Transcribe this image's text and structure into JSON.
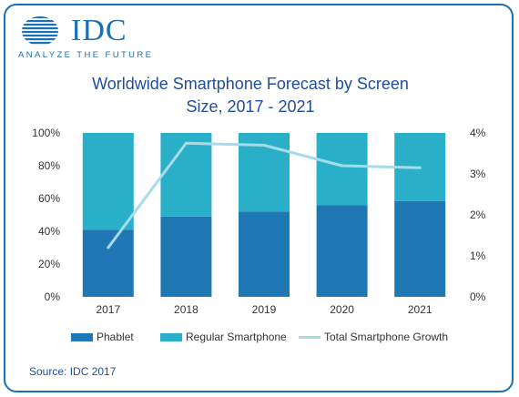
{
  "logo": {
    "word": "IDC",
    "tagline": "ANALYZE THE FUTURE"
  },
  "title_lines": [
    "Worldwide Smartphone Forecast by Screen",
    "Size, 2017 - 2021"
  ],
  "source": "Source: IDC 2017",
  "colors": {
    "phablet": "#1f78b4",
    "regular": "#29b0c8",
    "growth": "#a6dce8",
    "brand": "#1c6fb2"
  },
  "chart_data": {
    "type": "bar",
    "stacked": true,
    "title": "Worldwide Smartphone Forecast by Screen Size, 2017 - 2021",
    "categories": [
      "2017",
      "2018",
      "2019",
      "2020",
      "2021"
    ],
    "series": [
      {
        "name": "Phablet",
        "type": "bar",
        "axis": "left",
        "values": [
          41,
          49,
          52,
          56,
          58.5
        ]
      },
      {
        "name": "Regular Smartphone",
        "type": "bar",
        "axis": "left",
        "values": [
          59,
          51,
          48,
          44,
          41.5
        ]
      },
      {
        "name": "Total Smartphone Growth",
        "type": "line",
        "axis": "right",
        "values": [
          1.2,
          3.75,
          3.7,
          3.2,
          3.15
        ]
      }
    ],
    "y_left": {
      "ticks": [
        "0%",
        "20%",
        "40%",
        "60%",
        "80%",
        "100%"
      ],
      "range": [
        0,
        100
      ]
    },
    "y_right": {
      "ticks": [
        "0%",
        "1%",
        "2%",
        "3%",
        "4%"
      ],
      "range": [
        0,
        4
      ]
    },
    "grid": false,
    "legend": "bottom"
  }
}
